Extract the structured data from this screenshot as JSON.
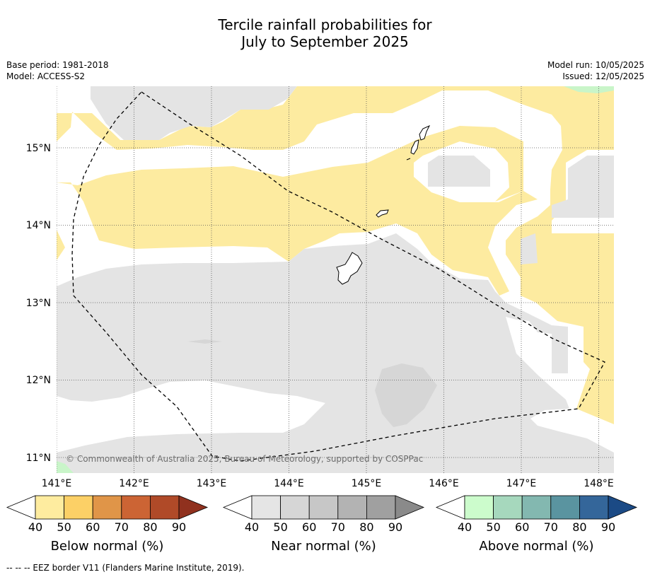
{
  "title": {
    "line1": "Tercile rainfall probabilities for",
    "line2": "July to September 2025"
  },
  "meta": {
    "base_period": "Base period: 1981-2018",
    "model": "Model: ACCESS-S2",
    "model_run": "Model run: 10/05/2025",
    "issued": "Issued: 12/05/2025"
  },
  "map": {
    "lon_ticks": [
      "141°E",
      "142°E",
      "143°E",
      "144°E",
      "145°E",
      "146°E",
      "147°E",
      "148°E"
    ],
    "lat_ticks": [
      "15°N",
      "14°N",
      "13°N",
      "12°N",
      "11°N"
    ],
    "lon_range": [
      141.0,
      148.2
    ],
    "lat_range": [
      10.8,
      15.8
    ],
    "copyright": "© Commonwealth of Australia 2025, Bureau of Meteorology, supported by COSPPac",
    "colors": {
      "below_50": "#fdeba0",
      "near_50": "#e4e4e4",
      "near_60": "#d6d6d6",
      "above_50": "#c9f5c9",
      "coast": "#000000",
      "eez": "#000000"
    }
  },
  "colorbars": [
    {
      "name": "Below normal (%)",
      "ticks": [
        "40",
        "50",
        "60",
        "70",
        "80",
        "90"
      ],
      "colors": [
        "#ffffff",
        "#feec9f",
        "#fcd066",
        "#e09548",
        "#cc6434",
        "#b04a28",
        "#90311e"
      ]
    },
    {
      "name": "Near normal (%)",
      "ticks": [
        "40",
        "50",
        "60",
        "70",
        "80",
        "90"
      ],
      "colors": [
        "#ffffff",
        "#e5e5e5",
        "#d6d6d6",
        "#c7c7c7",
        "#b3b3b3",
        "#a0a0a0",
        "#8a8a8a"
      ]
    },
    {
      "name": "Above normal (%)",
      "ticks": [
        "40",
        "50",
        "60",
        "70",
        "80",
        "90"
      ],
      "colors": [
        "#ffffff",
        "#ccfccc",
        "#a6d8bd",
        "#83b8b0",
        "#5a94a0",
        "#34669a",
        "#1b4a85"
      ]
    }
  ],
  "footer": "--  --  -- EEZ border V11 (Flanders Marine Institute, 2019)."
}
